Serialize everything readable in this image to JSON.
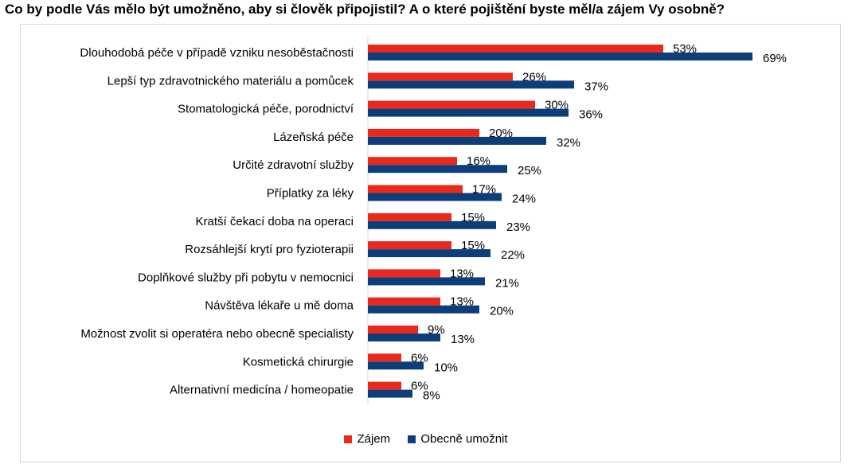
{
  "chart_data": {
    "type": "bar",
    "orientation": "horizontal",
    "title": "Co by podle Vás mělo být umožněno, aby si člověk připojistil?  A o které pojištění byste měl/a zájem Vy osobně?",
    "categories": [
      "Dlouhodobá péče v případě vzniku nesoběstačnosti",
      "Lepší typ zdravotnického materiálu a pomůcek",
      "Stomatologická péče, porodnictví",
      "Lázeňská péče",
      "Určité zdravotní služby",
      "Příplatky za léky",
      "Kratší čekací doba na operaci",
      "Rozsáhlejší krytí pro fyzioterapii",
      "Doplňkové služby při pobytu v nemocnici",
      "Návštěva lékaře u mě doma",
      "Možnost zvolit si operatéra nebo obecně specialisty",
      "Kosmetická chirurgie",
      "Alternativní medicína / homeopatie"
    ],
    "series": [
      {
        "name": "Zájem",
        "color": "#e8291c",
        "values": [
          53,
          26,
          30,
          20,
          16,
          17,
          15,
          15,
          13,
          13,
          9,
          6,
          6
        ]
      },
      {
        "name": "Obecně umožnit",
        "color": "#0e3e7a",
        "values": [
          69,
          37,
          36,
          32,
          25,
          24,
          23,
          22,
          21,
          20,
          13,
          10,
          8
        ]
      }
    ],
    "value_suffix": "%",
    "xlim": [
      0,
      75
    ],
    "grid": false,
    "legend_position": "bottom"
  }
}
